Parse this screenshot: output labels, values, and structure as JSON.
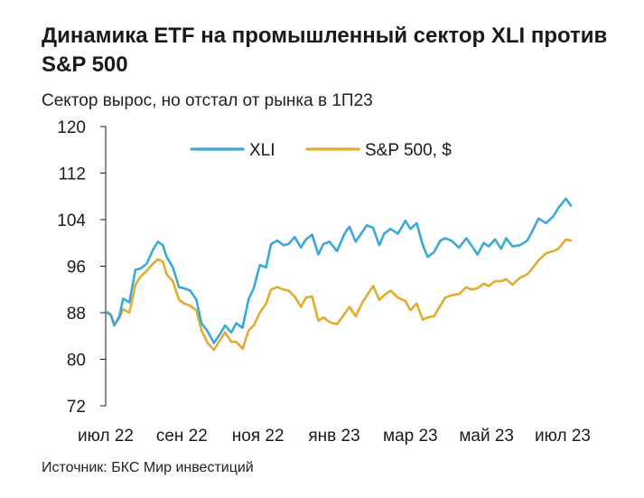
{
  "title": "Динамика ETF на промышленный сектор XLI против S&P 500",
  "subtitle": "Сектор вырос, но отстал от рынка в 1П23",
  "source": "Источник: БКС Мир инвестиций",
  "colors": {
    "xli": "#3aa8d8",
    "sp500": "#e3ab2f",
    "axis": "#1a1a1a"
  },
  "chart_data": {
    "type": "line",
    "title": "Динамика ETF на промышленный сектор XLI против S&P 500",
    "subtitle": "Сектор вырос, но отстал от рынка в 1П23",
    "xlabel": "",
    "ylabel": "",
    "ylim": [
      72,
      120
    ],
    "yticks": [
      120,
      112,
      104,
      96,
      88,
      80,
      72
    ],
    "xticks": [
      "июл 22",
      "сен 22",
      "ноя 22",
      "янв 23",
      "мар 23",
      "май 23",
      "июл 23"
    ],
    "xlim": [
      "2022-07-01",
      "2023-07-10"
    ],
    "grid": false,
    "legend": "top",
    "x": [
      "2022-07-01",
      "2022-07-05",
      "2022-07-08",
      "2022-07-12",
      "2022-07-15",
      "2022-07-20",
      "2022-07-25",
      "2022-07-29",
      "2022-08-03",
      "2022-08-08",
      "2022-08-12",
      "2022-08-16",
      "2022-08-19",
      "2022-08-24",
      "2022-08-29",
      "2022-09-02",
      "2022-09-07",
      "2022-09-12",
      "2022-09-16",
      "2022-09-21",
      "2022-09-26",
      "2022-09-30",
      "2022-10-05",
      "2022-10-10",
      "2022-10-14",
      "2022-10-19",
      "2022-10-24",
      "2022-10-28",
      "2022-11-02",
      "2022-11-07",
      "2022-11-11",
      "2022-11-16",
      "2022-11-21",
      "2022-11-25",
      "2022-11-30",
      "2022-12-05",
      "2022-12-09",
      "2022-12-14",
      "2022-12-19",
      "2022-12-23",
      "2022-12-28",
      "2023-01-03",
      "2023-01-09",
      "2023-01-13",
      "2023-01-18",
      "2023-01-23",
      "2023-01-27",
      "2023-02-01",
      "2023-02-06",
      "2023-02-10",
      "2023-02-15",
      "2023-02-21",
      "2023-02-27",
      "2023-03-03",
      "2023-03-08",
      "2023-03-13",
      "2023-03-17",
      "2023-03-22",
      "2023-03-27",
      "2023-03-31",
      "2023-04-05",
      "2023-04-11",
      "2023-04-17",
      "2023-04-21",
      "2023-04-26",
      "2023-05-01",
      "2023-05-05",
      "2023-05-10",
      "2023-05-15",
      "2023-05-19",
      "2023-05-24",
      "2023-05-30",
      "2023-06-05",
      "2023-06-09",
      "2023-06-14",
      "2023-06-20",
      "2023-06-26",
      "2023-06-30",
      "2023-07-06",
      "2023-07-10"
    ],
    "series": [
      {
        "name": "XLI",
        "color": "#3aa8d8",
        "values": [
          88.2,
          87.6,
          85.8,
          87.4,
          90.4,
          89.8,
          95.4,
          95.6,
          96.4,
          98.8,
          100.2,
          99.6,
          97.6,
          95.8,
          92.4,
          92.2,
          91.8,
          90.2,
          86.2,
          84.8,
          82.8,
          84.0,
          85.8,
          84.6,
          86.2,
          85.4,
          90.4,
          92.2,
          96.2,
          95.8,
          99.8,
          100.4,
          99.6,
          99.8,
          101.0,
          99.2,
          100.6,
          101.4,
          98.0,
          99.8,
          100.2,
          98.6,
          101.6,
          102.8,
          100.2,
          101.8,
          103.0,
          102.6,
          99.6,
          101.6,
          102.4,
          101.6,
          103.8,
          102.4,
          103.4,
          99.6,
          97.6,
          98.4,
          100.4,
          100.8,
          100.4,
          99.2,
          100.8,
          99.6,
          98.0,
          100.0,
          99.4,
          100.6,
          99.0,
          100.8,
          99.4,
          99.6,
          100.4,
          102.0,
          104.2,
          103.4,
          104.6,
          106.0,
          107.6,
          106.4
        ]
      },
      {
        "name": "S&P 500, $",
        "color": "#e3ab2f",
        "values": [
          88.2,
          87.8,
          86.0,
          87.0,
          88.6,
          88.0,
          92.8,
          94.2,
          95.2,
          96.4,
          97.2,
          96.8,
          94.6,
          93.4,
          90.2,
          89.6,
          89.2,
          88.4,
          85.0,
          82.8,
          81.6,
          83.0,
          84.6,
          83.0,
          83.0,
          81.8,
          85.0,
          85.8,
          88.0,
          89.6,
          92.0,
          92.4,
          92.0,
          91.8,
          90.8,
          89.0,
          90.6,
          90.8,
          86.6,
          87.2,
          86.4,
          86.0,
          87.8,
          89.0,
          87.4,
          89.6,
          91.0,
          92.6,
          90.2,
          91.0,
          91.8,
          90.6,
          90.0,
          88.4,
          89.6,
          86.8,
          87.2,
          87.4,
          89.2,
          90.6,
          91.0,
          91.2,
          92.4,
          92.0,
          92.2,
          93.0,
          92.6,
          93.4,
          93.4,
          93.8,
          92.8,
          94.0,
          94.6,
          95.6,
          97.0,
          98.2,
          98.6,
          99.0,
          100.6,
          100.4
        ]
      }
    ]
  }
}
